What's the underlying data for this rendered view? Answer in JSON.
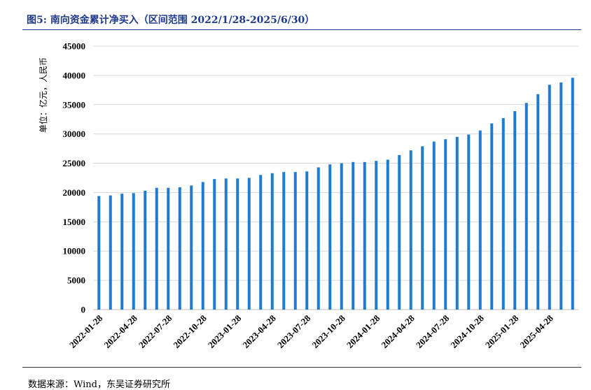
{
  "header": {
    "title": "图5:  南向资金累计净买入（区间范围 2022/1/28-2025/6/30）"
  },
  "footer": {
    "source": "数据来源：Wind，东吴证券研究所"
  },
  "colors": {
    "bar": "#1f7bd0",
    "title": "#1f3a8a"
  },
  "chart_data": {
    "type": "bar",
    "title": "南向资金累计净买入（区间范围 2022/1/28-2025/6/30）",
    "xlabel": "",
    "ylabel": "单位：亿元，人民币",
    "ylim": [
      0,
      45000
    ],
    "yticks": [
      0,
      5000,
      10000,
      15000,
      20000,
      25000,
      30000,
      35000,
      40000,
      45000
    ],
    "grid": true,
    "legend": "none",
    "categories": [
      "2022-01-28",
      "2022-02-28",
      "2022-03-28",
      "2022-04-28",
      "2022-05-28",
      "2022-06-28",
      "2022-07-28",
      "2022-08-28",
      "2022-09-28",
      "2022-10-28",
      "2022-11-28",
      "2022-12-28",
      "2023-01-28",
      "2023-02-28",
      "2023-03-28",
      "2023-04-28",
      "2023-05-28",
      "2023-06-28",
      "2023-07-28",
      "2023-08-28",
      "2023-09-28",
      "2023-10-28",
      "2023-11-28",
      "2023-12-28",
      "2024-01-28",
      "2024-02-28",
      "2024-03-28",
      "2024-04-28",
      "2024-05-28",
      "2024-06-28",
      "2024-07-28",
      "2024-08-28",
      "2024-09-28",
      "2024-10-28",
      "2024-11-28",
      "2024-12-28",
      "2025-01-28",
      "2025-02-28",
      "2025-03-28",
      "2025-04-28",
      "2025-05-28",
      "2025-06-28"
    ],
    "tick_labels": [
      "2022-01-28",
      "2022-04-28",
      "2022-07-28",
      "2022-10-28",
      "2023-01-28",
      "2023-04-28",
      "2023-07-28",
      "2023-10-28",
      "2024-01-28",
      "2024-04-28",
      "2024-07-28",
      "2024-10-28",
      "2025-01-28",
      "2025-04-28"
    ],
    "values": [
      19400,
      19500,
      19800,
      19900,
      20300,
      20800,
      20800,
      20900,
      21200,
      21800,
      22300,
      22400,
      22400,
      22500,
      23000,
      23300,
      23500,
      23500,
      23600,
      24300,
      24800,
      25000,
      25200,
      25200,
      25400,
      25600,
      26400,
      27200,
      27900,
      28700,
      29100,
      29500,
      29900,
      30600,
      31800,
      32700,
      33900,
      35300,
      36800,
      38400,
      38800,
      39600
    ]
  }
}
